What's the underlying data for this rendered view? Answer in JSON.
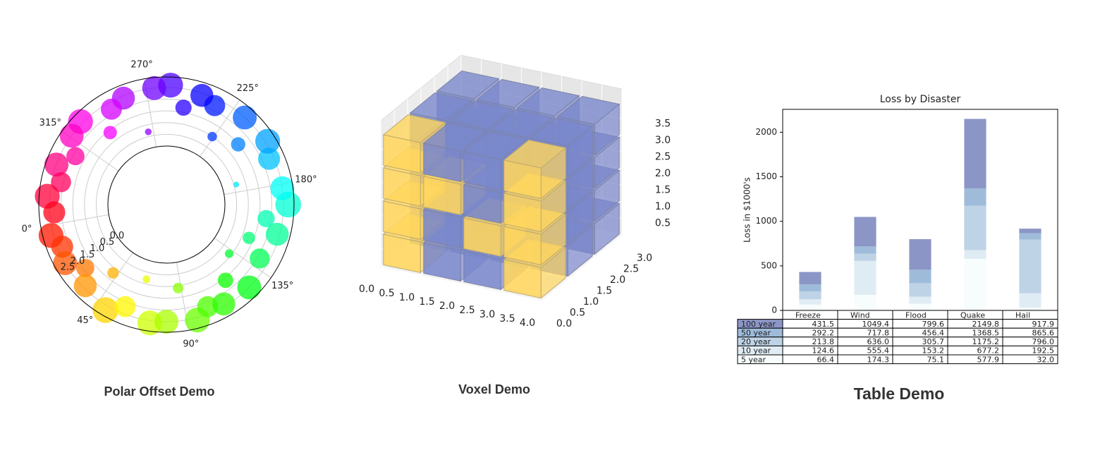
{
  "gallery": [
    {
      "caption": "Polar Offset Demo"
    },
    {
      "caption": "Voxel Demo"
    },
    {
      "caption": "Table Demo"
    }
  ],
  "chart_data": [
    {
      "type": "polar_scatter",
      "theta": [
        5,
        12,
        20,
        28,
        35,
        42,
        50,
        58,
        65,
        72,
        80,
        88,
        95,
        102,
        110,
        118,
        125,
        132,
        140,
        148,
        155,
        162,
        170,
        178,
        186,
        194,
        202,
        210,
        218,
        226,
        234,
        242,
        250,
        258,
        266,
        274,
        282,
        290,
        298,
        306,
        314,
        322,
        330,
        338,
        346,
        354
      ],
      "r": [
        2.6,
        2.3,
        2.5,
        1.9,
        2.4,
        1.2,
        2.7,
        2.2,
        0.8,
        2.6,
        2.5,
        1.1,
        2.6,
        2.2,
        2.4,
        1.6,
        2.5,
        0.9,
        2.1,
        1.3,
        2.4,
        1.8,
        2.7,
        2.5,
        0.6,
        2.3,
        2.6,
        1.5,
        2.5,
        1.0,
        2.2,
        2.4,
        1.7,
        2.6,
        2.5,
        0.7,
        2.4,
        2.2,
        1.4,
        2.6,
        2.5,
        1.9,
        2.5,
        2.1,
        2.6,
        2.3
      ],
      "sizes": [
        1352,
        1058,
        1250,
        722,
        1152,
        288,
        1458,
        968,
        128,
        1352,
        1250,
        242,
        1352,
        968,
        1152,
        512,
        1250,
        162,
        882,
        338,
        1152,
        648,
        1458,
        1250,
        72,
        1058,
        1352,
        450,
        1250,
        200,
        968,
        1152,
        578,
        1352,
        1250,
        98,
        1152,
        968,
        392,
        1352,
        1250,
        722,
        1250,
        882,
        1352,
        1058
      ],
      "cmap": "hsv",
      "alpha": 0.75,
      "theta_zero_location": "W",
      "theta_offset": 10,
      "theta_direction": "counterclockwise",
      "rorigin": -2.5,
      "rlim": [
        0,
        2.95
      ],
      "rlabel_position": 22.5,
      "rticks": [
        {
          "value": 0,
          "label": "0.0"
        },
        0.5,
        {
          "value": 1,
          "label": "1.0"
        },
        1.5,
        {
          "value": 2,
          "label": "2.0"
        },
        2.5
      ],
      "thetaticks": [
        {
          "value": 0,
          "label": "0°"
        },
        {
          "value": 45,
          "label": "45°"
        },
        {
          "value": 90,
          "label": "90°"
        },
        {
          "value": 135,
          "label": "135°"
        },
        {
          "value": 180,
          "label": "180°"
        },
        {
          "value": 225,
          "label": "225°"
        },
        {
          "value": 270,
          "label": "270°"
        },
        {
          "value": 315,
          "label": "315°"
        }
      ],
      "grid": true
    },
    {
      "type": "voxels",
      "shape": [
        4,
        3,
        4
      ],
      "color": "#7A88CC",
      "edge_color": "#7D84A6",
      "highlight_color": "#FFD65D",
      "highlight_edge_color": "#BFAB6E",
      "highlighted": [
        [
          0,
          0,
          0
        ],
        [
          0,
          0,
          1
        ],
        [
          0,
          0,
          2
        ],
        [
          0,
          0,
          3
        ],
        [
          3,
          0,
          0
        ],
        [
          3,
          0,
          1
        ],
        [
          3,
          0,
          2
        ],
        [
          3,
          0,
          3
        ],
        [
          1,
          0,
          2
        ],
        [
          2,
          0,
          1
        ]
      ],
      "xlim": [
        0,
        4
      ],
      "ylim": [
        0,
        3
      ],
      "zlim": [
        0,
        4
      ],
      "xticks": [
        {
          "value": 0,
          "label": "0.0"
        },
        0.5,
        {
          "value": 1,
          "label": "1.0"
        },
        1.5,
        {
          "value": 2,
          "label": "2.0"
        },
        2.5,
        {
          "value": 3,
          "label": "3.0"
        },
        3.5,
        {
          "value": 4,
          "label": "4.0"
        }
      ],
      "yticks": [
        {
          "value": 0,
          "label": "0.0"
        },
        0.5,
        {
          "value": 1,
          "label": "1.0"
        },
        1.5,
        {
          "value": 2,
          "label": "2.0"
        },
        2.5,
        {
          "value": 3,
          "label": "3.0"
        }
      ],
      "zticks": [
        0.5,
        {
          "value": 1,
          "label": "1.0"
        },
        1.5,
        {
          "value": 2,
          "label": "2.0"
        },
        2.5,
        {
          "value": 3,
          "label": "3.0"
        },
        3.5
      ],
      "grid": true
    },
    {
      "type": "stacked_bar_table",
      "title": "Loss by Disaster",
      "ylabel": "Loss in $1000's",
      "categories": [
        "Freeze",
        "Wind",
        "Flood",
        "Quake",
        "Hail"
      ],
      "series": [
        {
          "name": "100 year",
          "color": "#8c96c6",
          "values": [
            431.5,
            1049.4,
            799.6,
            2149.8,
            917.9
          ],
          "value_labels": [
            "431.5",
            "1049.4",
            "799.6",
            "2149.8",
            "917.9"
          ]
        },
        {
          "name": "50 year",
          "color": "#9ebcda",
          "values": [
            292.2,
            717.8,
            456.4,
            1368.5,
            865.6
          ],
          "value_labels": [
            "292.2",
            "717.8",
            "456.4",
            "1368.5",
            "865.6"
          ]
        },
        {
          "name": "20 year",
          "color": "#bfd3e6",
          "values": [
            213.8,
            636,
            305.7,
            1175.2,
            796
          ],
          "value_labels": [
            "213.8",
            "636.0",
            "305.7",
            "1175.2",
            "796.0"
          ]
        },
        {
          "name": "10 year",
          "color": "#e0ecf4",
          "values": [
            124.6,
            555.4,
            153.2,
            677.2,
            192.5
          ],
          "value_labels": [
            "124.6",
            "555.4",
            "153.2",
            "677.2",
            "192.5"
          ]
        },
        {
          "name": "5 year",
          "color": "#f7fcfd",
          "values": [
            66.4,
            174.3,
            75.1,
            577.9,
            32
          ],
          "value_labels": [
            "66.4",
            "174.3",
            "75.1",
            "577.9",
            "32.0"
          ]
        }
      ],
      "ylim": [
        0,
        2257
      ],
      "yticks": [
        0,
        500,
        1000,
        1500,
        2000
      ]
    }
  ]
}
